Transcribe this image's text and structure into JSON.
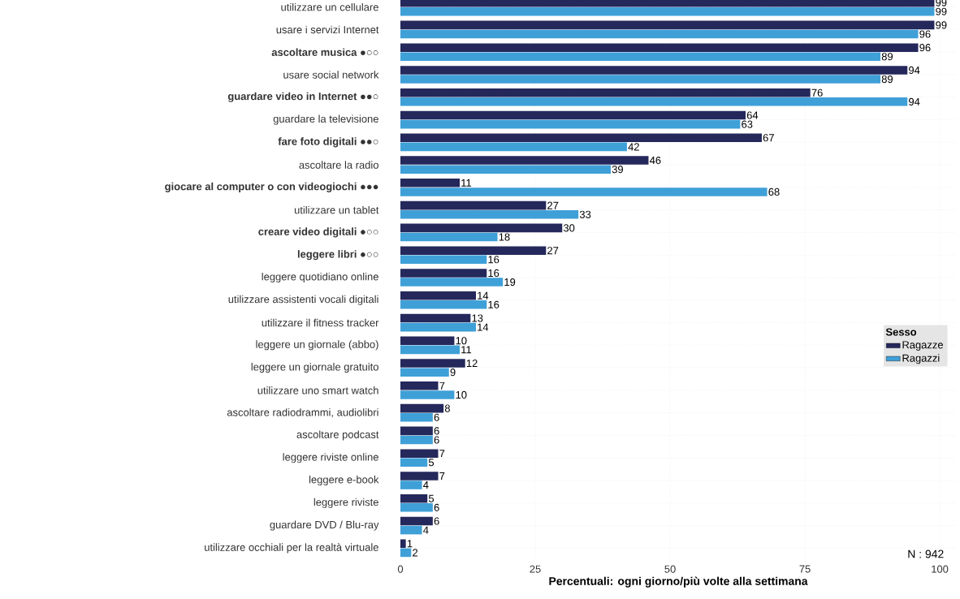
{
  "chart_data": {
    "type": "bar",
    "orientation": "horizontal",
    "xlabel": "Percentuali: ogni giorno/più volte alla settimana",
    "legend_title": "Sesso",
    "legend": "right",
    "grid": true,
    "data_labels": true,
    "categories": [
      "utilizzare un cellulare",
      "usare i servizi Internet",
      "**ascoltare musica ●○○**",
      "usare social network",
      "**guardare video in Internet ●●○**",
      "guardare la televisione",
      "**fare foto digitali ●●○**",
      "ascoltare la radio",
      "**giocare al computer o con videogiochi ●●●**",
      "utilizzare un tablet",
      "**creare video digitali ●○○**",
      "**leggere libri ●○○**",
      "leggere quotidiano online",
      "utilizzare assistenti vocali digitali",
      "utilizzare il fitness tracker",
      "leggere un giornale (abbo)",
      "leggere un giornale gratuito",
      "utilizzare uno smart watch",
      "ascoltare radiodrammi, audiolibri",
      "ascoltare podcast",
      "leggere riviste online",
      "leggere e-book",
      "leggere riviste",
      "guardare DVD / Blu-ray",
      "utilizzare occhiali per la realtà virtuale"
    ],
    "series": [
      {
        "name": "Ragazze",
        "color": "#24285b",
        "values": [
          99,
          99,
          96,
          94,
          76,
          64,
          67,
          46,
          11,
          27,
          30,
          27,
          16,
          14,
          13,
          10,
          12,
          7,
          8,
          6,
          7,
          7,
          5,
          6,
          1
        ]
      },
      {
        "name": "Ragazzi",
        "color": "#3fa0d8",
        "values": [
          99,
          96,
          89,
          89,
          94,
          63,
          42,
          39,
          68,
          33,
          18,
          16,
          19,
          16,
          14,
          11,
          9,
          10,
          6,
          6,
          5,
          4,
          6,
          4,
          2
        ]
      }
    ],
    "xlim": [
      0,
      103
    ],
    "xticks": [
      0,
      25,
      50,
      75,
      100
    ],
    "annotations": [
      "N : 942"
    ]
  }
}
